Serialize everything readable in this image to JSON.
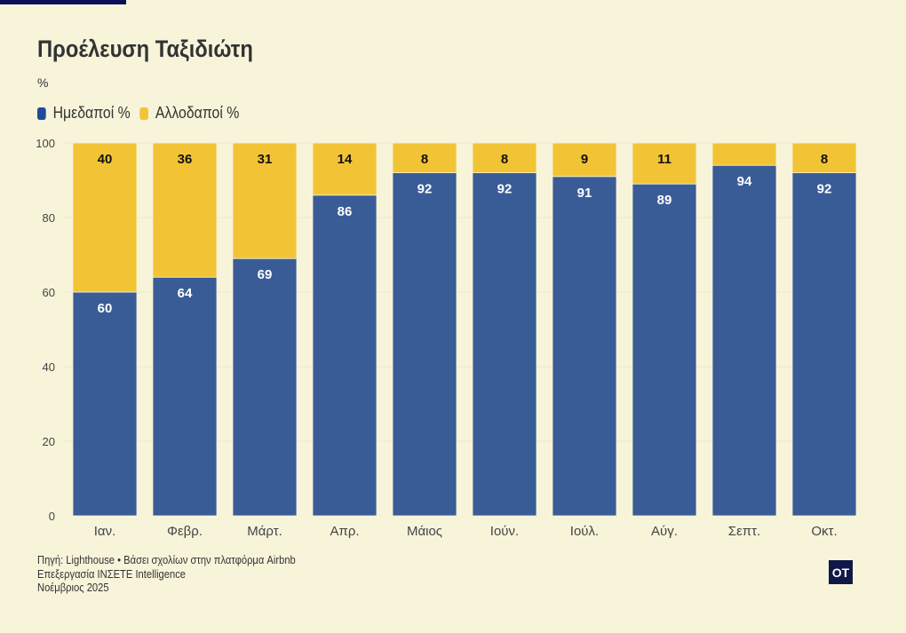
{
  "chart_data": {
    "type": "bar",
    "stacked": true,
    "title": "Προέλευση Ταξιδιώτη",
    "subtitle": "%",
    "categories": [
      "Ιαν.",
      "Φεβρ.",
      "Μάρτ.",
      "Απρ.",
      "Μάιος",
      "Ιούν.",
      "Ιούλ.",
      "Αύγ.",
      "Σεπτ.",
      "Οκτ."
    ],
    "series": [
      {
        "name": "Ημεδαποί %",
        "color": "#3a5c96",
        "values": [
          60,
          64,
          69,
          86,
          92,
          92,
          91,
          89,
          94,
          92
        ]
      },
      {
        "name": "Αλλοδαποί %",
        "color": "#f2c435",
        "values": [
          40,
          36,
          31,
          14,
          8,
          8,
          9,
          11,
          6,
          8
        ]
      }
    ],
    "ylim": [
      0,
      100
    ],
    "yticks": [
      0,
      20,
      40,
      60,
      80,
      100
    ],
    "grid": true,
    "legend": "top-left"
  },
  "footer": {
    "source": "Πηγή: Lighthouse • Βάσει σχολίων στην πλατφόρμα Airbnb",
    "processing": "Επεξεργασία INΣETE Intelligence",
    "date": "Νοέμβριος 2025"
  },
  "logo": "OT"
}
